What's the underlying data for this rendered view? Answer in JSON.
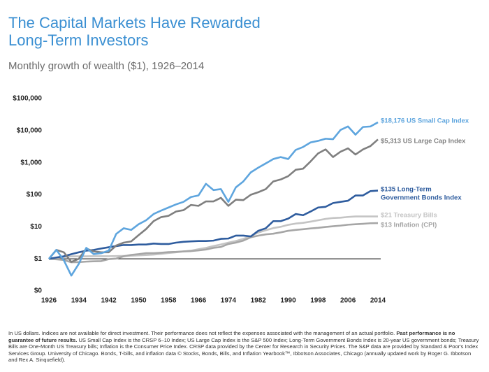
{
  "chart_data": {
    "type": "line",
    "title": [
      "The Capital Markets Have Rewarded",
      "Long-Term Investors"
    ],
    "subtitle": "Monthly growth of wealth ($1), 1926–2014",
    "log_scale": true,
    "reference_line": 1,
    "xlim": [
      1926,
      2014
    ],
    "xticks": [
      1926,
      1934,
      1942,
      1950,
      1958,
      1966,
      1974,
      1982,
      1990,
      1998,
      2006,
      2014
    ],
    "ylim": [
      0.1,
      100000
    ],
    "yticks": [
      {
        "value": 0.1,
        "label": "$0"
      },
      {
        "value": 1,
        "label": "$1"
      },
      {
        "value": 10,
        "label": "$10"
      },
      {
        "value": 100,
        "label": "$100"
      },
      {
        "value": 1000,
        "label": "$1,000"
      },
      {
        "value": 10000,
        "label": "$10,000"
      },
      {
        "value": 100000,
        "label": "$100,000"
      }
    ],
    "x": [
      1926,
      1928,
      1930,
      1932,
      1934,
      1936,
      1938,
      1940,
      1942,
      1944,
      1946,
      1948,
      1950,
      1952,
      1954,
      1956,
      1958,
      1960,
      1962,
      1964,
      1966,
      1968,
      1970,
      1972,
      1974,
      1976,
      1978,
      1980,
      1982,
      1984,
      1986,
      1988,
      1990,
      1992,
      1994,
      1996,
      1998,
      2000,
      2002,
      2004,
      2006,
      2008,
      2010,
      2012,
      2014
    ],
    "series": [
      {
        "label": [
          "$21 Treasury Bills"
        ],
        "color": "#c4c4c4",
        "values": [
          1,
          1.07,
          1.14,
          1.2,
          1.2,
          1.2,
          1.21,
          1.21,
          1.21,
          1.22,
          1.23,
          1.25,
          1.28,
          1.32,
          1.36,
          1.43,
          1.52,
          1.6,
          1.7,
          1.8,
          2.0,
          2.2,
          2.5,
          2.8,
          3.2,
          3.6,
          4.2,
          5.1,
          6.6,
          7.8,
          9.1,
          10,
          11.5,
          12.6,
          13.3,
          14.5,
          16,
          17.6,
          18.8,
          19.2,
          20.3,
          21,
          21,
          21,
          21
        ]
      },
      {
        "label": [
          "$13 Inflation (CPI)"
        ],
        "color": "#a6a6a6",
        "values": [
          1,
          0.97,
          0.92,
          0.78,
          0.79,
          0.82,
          0.84,
          0.85,
          0.98,
          1.02,
          1.2,
          1.33,
          1.4,
          1.5,
          1.5,
          1.55,
          1.62,
          1.65,
          1.7,
          1.74,
          1.83,
          1.95,
          2.2,
          2.35,
          2.9,
          3.2,
          3.7,
          4.7,
          5.3,
          5.8,
          6.1,
          6.7,
          7.5,
          8.0,
          8.4,
          8.9,
          9.3,
          9.9,
          10.4,
          10.9,
          11.6,
          12.0,
          12.4,
          12.9,
          13
        ]
      },
      {
        "label": [
          "$135 Long-Term",
          "Government Bonds Index"
        ],
        "color": "#2e5c9e",
        "values": [
          1,
          1.1,
          1.2,
          1.4,
          1.6,
          1.8,
          1.9,
          2.1,
          2.3,
          2.5,
          2.7,
          2.7,
          2.8,
          2.8,
          3.0,
          2.9,
          2.9,
          3.2,
          3.4,
          3.5,
          3.6,
          3.6,
          3.7,
          4.2,
          4.3,
          5.3,
          5.3,
          5.0,
          7.5,
          9.0,
          15,
          15,
          18,
          25,
          23,
          30,
          40,
          42,
          55,
          60,
          65,
          95,
          95,
          130,
          135
        ]
      },
      {
        "label": [
          "$5,313 US Large Cap Index"
        ],
        "color": "#7f7f7f",
        "values": [
          1,
          1.9,
          1.6,
          0.8,
          1.0,
          2.1,
          1.7,
          1.6,
          1.6,
          2.6,
          3.2,
          3.5,
          5.5,
          8.5,
          15,
          20,
          22,
          30,
          33,
          48,
          45,
          62,
          62,
          80,
          45,
          70,
          68,
          100,
          120,
          150,
          260,
          300,
          380,
          600,
          650,
          1100,
          1950,
          2600,
          1500,
          2200,
          2800,
          1800,
          2600,
          3300,
          5313
        ]
      },
      {
        "label": [
          "$18,176 US Small Cap Index"
        ],
        "color": "#5ea5de",
        "values": [
          1,
          1.9,
          0.9,
          0.3,
          0.7,
          2.2,
          1.4,
          1.5,
          1.8,
          6,
          9,
          8,
          12,
          16,
          25,
          32,
          40,
          50,
          60,
          85,
          95,
          220,
          140,
          150,
          60,
          170,
          260,
          500,
          700,
          950,
          1300,
          1500,
          1300,
          2500,
          3100,
          4300,
          4800,
          5600,
          5400,
          10500,
          13500,
          7500,
          13000,
          13500,
          18176
        ]
      }
    ]
  },
  "footnote": [
    "In US dollars. Indices are not available for direct investment. Their performance does not reflect the expenses associated with the management of an actual portfolio. ",
    "Past performance is no guarantee of future results.",
    " US Small Cap Index is the CRSP 6–10 Index; US Large Cap Index is the S&P 500 Index; Long-Term Government Bonds Index is 20-year US government bonds; Treasury Bills are One-Month US Treasury bills; Inflation is the Consumer Price Index. CRSP data provided by the Center for Research in Security Prices. The S&P data are provided by Standard & Poor's Index Services Group. University of Chicago. Bonds, T-bills, and inflation data © Stocks, Bonds, Bills, and Inflation Yearbook™, Ibbotson Associates, Chicago (annually updated work by Roger G. Ibbotson and Rex A. Sinquefield)."
  ]
}
